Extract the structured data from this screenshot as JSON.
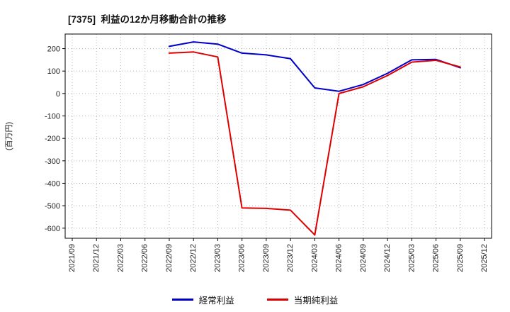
{
  "header": {
    "title": "[7375]  利益の12か月移動合計の推移"
  },
  "chart_data": {
    "type": "line",
    "title": "[7375]  利益の12か月移動合計の推移",
    "xlabel": "",
    "ylabel": "(百万円)",
    "categories": [
      "2021/09",
      "2021/12",
      "2022/03",
      "2022/06",
      "2022/09",
      "2022/12",
      "2023/03",
      "2023/06",
      "2023/09",
      "2023/12",
      "2024/03",
      "2024/06",
      "2024/09",
      "2024/12",
      "2025/03",
      "2025/06",
      "2025/09",
      "2025/12"
    ],
    "yticks": [
      200,
      100,
      0,
      -100,
      -200,
      -300,
      -400,
      -500,
      -600
    ],
    "ylim": [
      -645,
      265
    ],
    "grid": true,
    "legend_position": "bottom",
    "series": [
      {
        "name": "経常利益",
        "color": "#0000cc",
        "values": [
          null,
          null,
          null,
          null,
          210,
          230,
          220,
          180,
          172,
          155,
          25,
          10,
          40,
          90,
          150,
          152,
          115,
          null
        ]
      },
      {
        "name": "当期純利益",
        "color": "#dd0000",
        "values": [
          null,
          null,
          null,
          null,
          180,
          185,
          163,
          -510,
          -512,
          -520,
          -630,
          0,
          30,
          80,
          140,
          148,
          118,
          null
        ]
      }
    ]
  }
}
